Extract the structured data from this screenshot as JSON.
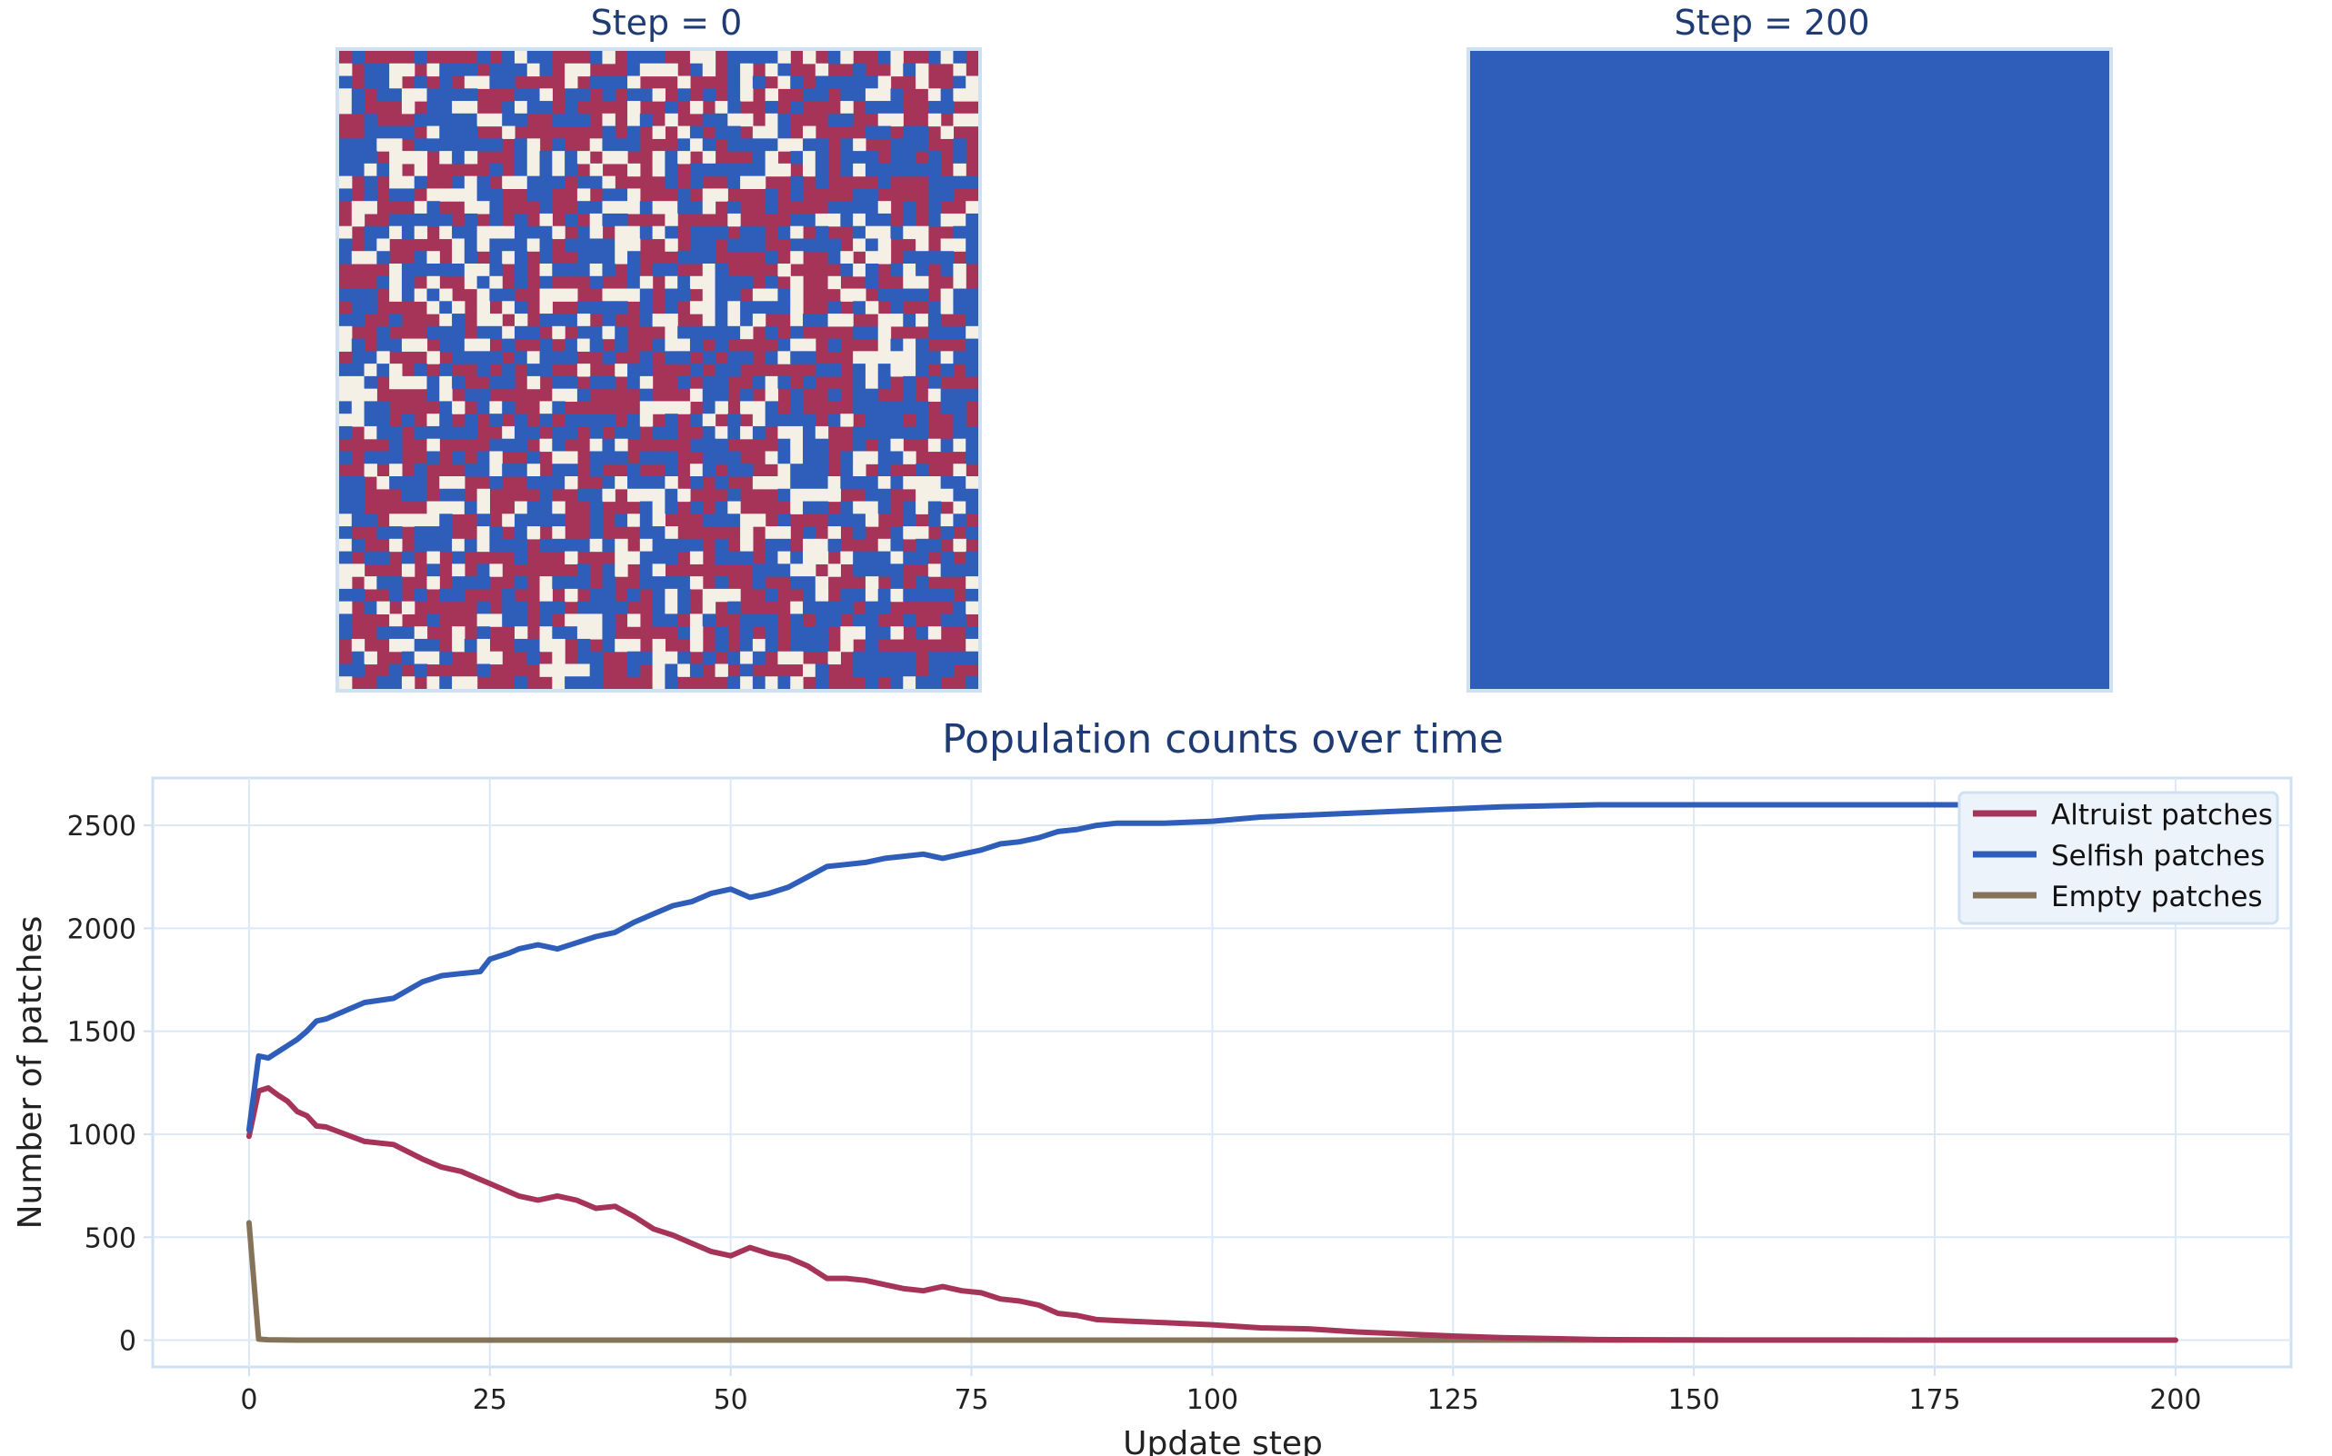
{
  "grid_panels": [
    {
      "title": "Step = 0",
      "state": "random-mix"
    },
    {
      "title": "Step = 200",
      "state": "all-selfish"
    }
  ],
  "grid_size": 51,
  "cell_colors": {
    "altruist": "#a63358",
    "selfish": "#2e5eb9",
    "empty": "#f5f0e6"
  },
  "grid_border_color": "#cfe0f3",
  "chart_data": {
    "type": "line",
    "title": "Population counts over time",
    "xlabel": "Update step",
    "ylabel": "Number of patches",
    "xlim": [
      -10,
      212
    ],
    "ylim": [
      -130,
      2730
    ],
    "xticks": [
      0,
      25,
      50,
      75,
      100,
      125,
      150,
      175,
      200
    ],
    "yticks": [
      0,
      500,
      1000,
      1500,
      2000,
      2500
    ],
    "grid": true,
    "legend_position": "top-right",
    "series": [
      {
        "name": "Altruist patches",
        "color": "#a63358",
        "points": [
          [
            0,
            990
          ],
          [
            1,
            1210
          ],
          [
            2,
            1225
          ],
          [
            3,
            1190
          ],
          [
            4,
            1160
          ],
          [
            5,
            1110
          ],
          [
            6,
            1090
          ],
          [
            7,
            1040
          ],
          [
            8,
            1035
          ],
          [
            10,
            1000
          ],
          [
            12,
            965
          ],
          [
            15,
            950
          ],
          [
            18,
            880
          ],
          [
            20,
            840
          ],
          [
            22,
            820
          ],
          [
            25,
            760
          ],
          [
            27,
            720
          ],
          [
            28,
            700
          ],
          [
            30,
            680
          ],
          [
            32,
            700
          ],
          [
            34,
            680
          ],
          [
            36,
            640
          ],
          [
            38,
            650
          ],
          [
            40,
            600
          ],
          [
            42,
            540
          ],
          [
            44,
            510
          ],
          [
            46,
            470
          ],
          [
            48,
            430
          ],
          [
            50,
            410
          ],
          [
            52,
            450
          ],
          [
            54,
            420
          ],
          [
            56,
            400
          ],
          [
            58,
            360
          ],
          [
            60,
            300
          ],
          [
            62,
            300
          ],
          [
            64,
            290
          ],
          [
            66,
            270
          ],
          [
            68,
            250
          ],
          [
            70,
            240
          ],
          [
            72,
            260
          ],
          [
            74,
            240
          ],
          [
            76,
            230
          ],
          [
            78,
            200
          ],
          [
            80,
            190
          ],
          [
            82,
            170
          ],
          [
            84,
            130
          ],
          [
            86,
            120
          ],
          [
            88,
            100
          ],
          [
            90,
            95
          ],
          [
            95,
            85
          ],
          [
            100,
            75
          ],
          [
            105,
            60
          ],
          [
            110,
            55
          ],
          [
            115,
            40
          ],
          [
            120,
            30
          ],
          [
            125,
            20
          ],
          [
            130,
            12
          ],
          [
            135,
            8
          ],
          [
            140,
            3
          ],
          [
            150,
            1
          ],
          [
            175,
            0
          ],
          [
            200,
            0
          ]
        ]
      },
      {
        "name": "Selfish patches",
        "color": "#2e5eb9",
        "points": [
          [
            0,
            1020
          ],
          [
            1,
            1380
          ],
          [
            2,
            1370
          ],
          [
            3,
            1400
          ],
          [
            4,
            1430
          ],
          [
            5,
            1460
          ],
          [
            6,
            1500
          ],
          [
            7,
            1550
          ],
          [
            8,
            1560
          ],
          [
            10,
            1600
          ],
          [
            12,
            1640
          ],
          [
            15,
            1660
          ],
          [
            18,
            1740
          ],
          [
            20,
            1770
          ],
          [
            22,
            1780
          ],
          [
            24,
            1790
          ],
          [
            25,
            1850
          ],
          [
            27,
            1880
          ],
          [
            28,
            1900
          ],
          [
            30,
            1920
          ],
          [
            32,
            1900
          ],
          [
            34,
            1930
          ],
          [
            36,
            1960
          ],
          [
            38,
            1980
          ],
          [
            40,
            2030
          ],
          [
            42,
            2070
          ],
          [
            44,
            2110
          ],
          [
            46,
            2130
          ],
          [
            48,
            2170
          ],
          [
            50,
            2190
          ],
          [
            52,
            2150
          ],
          [
            54,
            2170
          ],
          [
            56,
            2200
          ],
          [
            58,
            2250
          ],
          [
            60,
            2300
          ],
          [
            62,
            2310
          ],
          [
            64,
            2320
          ],
          [
            66,
            2340
          ],
          [
            68,
            2350
          ],
          [
            70,
            2360
          ],
          [
            72,
            2340
          ],
          [
            74,
            2360
          ],
          [
            76,
            2380
          ],
          [
            78,
            2410
          ],
          [
            80,
            2420
          ],
          [
            82,
            2440
          ],
          [
            84,
            2470
          ],
          [
            86,
            2480
          ],
          [
            88,
            2500
          ],
          [
            90,
            2510
          ],
          [
            95,
            2510
          ],
          [
            100,
            2520
          ],
          [
            105,
            2540
          ],
          [
            110,
            2550
          ],
          [
            115,
            2560
          ],
          [
            120,
            2570
          ],
          [
            125,
            2580
          ],
          [
            130,
            2590
          ],
          [
            135,
            2595
          ],
          [
            140,
            2600
          ],
          [
            150,
            2600
          ],
          [
            175,
            2600
          ],
          [
            200,
            2600
          ]
        ]
      },
      {
        "name": "Empty patches",
        "color": "#857359",
        "points": [
          [
            0,
            570
          ],
          [
            1,
            5
          ],
          [
            2,
            2
          ],
          [
            5,
            0
          ],
          [
            200,
            0
          ]
        ]
      }
    ]
  }
}
